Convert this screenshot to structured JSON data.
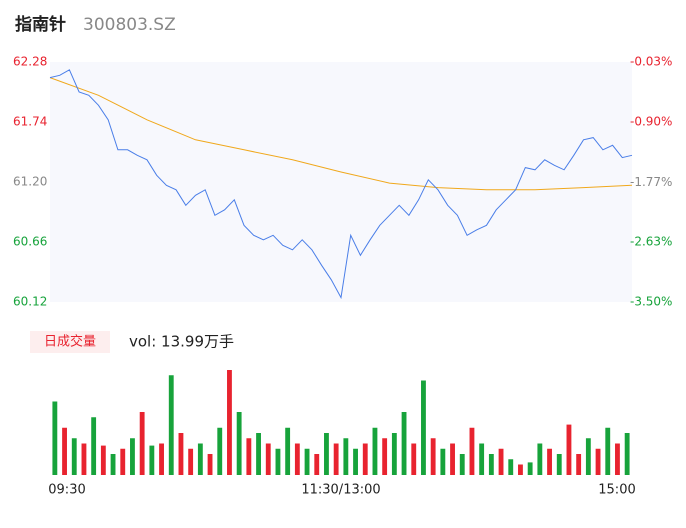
{
  "header": {
    "name": "指南针",
    "code": "300803.SZ"
  },
  "chart_data": [
    {
      "type": "line",
      "x": [
        0,
        4,
        8,
        12,
        16,
        20,
        24,
        28,
        32,
        36,
        40,
        44,
        48,
        52,
        56,
        60,
        64,
        68,
        72,
        76,
        80,
        84,
        88,
        92,
        96,
        100,
        104,
        108,
        112,
        116,
        120,
        124,
        128,
        132,
        136,
        140,
        144,
        148,
        152,
        156,
        160,
        164,
        168,
        172,
        176,
        180,
        184,
        188,
        192,
        196,
        200,
        204,
        208,
        212,
        216,
        220,
        224,
        228,
        232,
        236,
        240
      ],
      "series": [
        {
          "color": "#4a7ee8",
          "values": [
            62.14,
            62.16,
            62.21,
            62.01,
            61.98,
            61.89,
            61.76,
            61.49,
            61.49,
            61.44,
            61.4,
            61.26,
            61.17,
            61.13,
            60.99,
            61.08,
            61.13,
            60.9,
            60.95,
            61.04,
            60.81,
            60.72,
            60.68,
            60.72,
            60.63,
            60.59,
            60.68,
            60.59,
            60.45,
            60.32,
            60.16,
            60.72,
            60.54,
            60.68,
            60.81,
            60.9,
            60.99,
            60.9,
            61.04,
            61.22,
            61.13,
            60.99,
            60.9,
            60.72,
            60.77,
            60.81,
            60.95,
            61.04,
            61.13,
            61.33,
            61.31,
            61.4,
            61.35,
            61.31,
            61.44,
            61.58,
            61.6,
            61.49,
            61.53,
            61.42,
            61.44
          ]
        }
      ],
      "avg_x": [
        0,
        20,
        40,
        60,
        80,
        100,
        120,
        140,
        160,
        180,
        200,
        220,
        240
      ],
      "avg": {
        "color": "#f0a81c",
        "values": [
          62.14,
          61.98,
          61.76,
          61.58,
          61.49,
          61.4,
          61.29,
          61.19,
          61.15,
          61.13,
          61.13,
          61.15,
          61.17
        ]
      },
      "xlim": [
        0,
        240
      ],
      "ylim": [
        60.12,
        62.28
      ],
      "yticks": [
        62.28,
        61.74,
        {
          "value": 61.2,
          "label": "61.20"
        },
        60.66,
        60.12
      ],
      "ytick_colors": [
        "#e8232f",
        "#e8232f",
        "#888888",
        "#17a33b",
        "#17a33b"
      ],
      "y2lim": [
        -3.5,
        -0.03
      ],
      "y2ticks": [
        {
          "value": -0.03,
          "label": "-0.03%"
        },
        {
          "value": -0.9,
          "label": "-0.90%"
        },
        {
          "value": -1.77,
          "label": "-1.77%"
        },
        {
          "value": -2.63,
          "label": "-2.63%"
        },
        {
          "value": -3.5,
          "label": "-3.50%"
        }
      ]
    },
    {
      "type": "bar",
      "tag": "日成交量",
      "label": "vol: 13.99万手",
      "up_color": "#e8232f",
      "down_color": "#17a33b",
      "values": [
        70,
        45,
        35,
        30,
        55,
        28,
        20,
        25,
        35,
        60,
        28,
        30,
        95,
        40,
        25,
        30,
        20,
        45,
        100,
        60,
        35,
        40,
        30,
        25,
        45,
        30,
        25,
        20,
        40,
        30,
        35,
        25,
        30,
        45,
        35,
        40,
        60,
        30,
        90,
        35,
        25,
        30,
        20,
        45,
        30,
        20,
        25,
        15,
        10,
        12,
        30,
        25,
        20,
        48,
        20,
        35,
        25,
        45,
        30,
        40
      ],
      "up": [
        false,
        true,
        false,
        true,
        false,
        true,
        false,
        true,
        false,
        true,
        false,
        true,
        false,
        true,
        true,
        false,
        true,
        false,
        true,
        false,
        true,
        false,
        true,
        false,
        false,
        true,
        false,
        true,
        false,
        true,
        false,
        false,
        true,
        false,
        true,
        false,
        false,
        true,
        false,
        true,
        false,
        true,
        false,
        true,
        false,
        false,
        true,
        false,
        true,
        false,
        false,
        true,
        false,
        true,
        true,
        false,
        true,
        false,
        true,
        false
      ],
      "ylim": [
        0,
        100
      ],
      "xticks": [
        {
          "value": 0,
          "label": "09:30"
        },
        {
          "value": 120,
          "label": "11:30/13:00"
        },
        {
          "value": 240,
          "label": "15:00"
        }
      ]
    }
  ]
}
